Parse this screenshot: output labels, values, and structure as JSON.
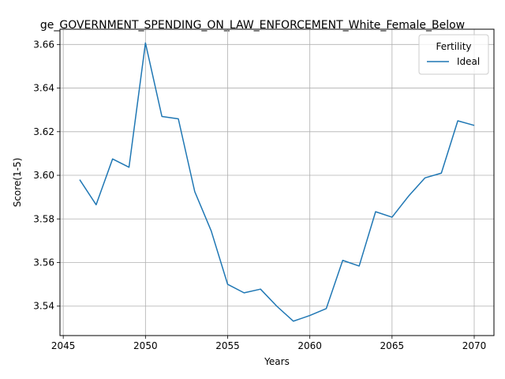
{
  "chart_data": {
    "type": "line",
    "title": "ge_GOVERNMENT_SPENDING_ON_LAW_ENFORCEMENT_White_Female_Below",
    "xlabel": "Years",
    "ylabel": "Score(1-5)",
    "xlim": [
      2044.8,
      2071.2
    ],
    "ylim": [
      3.5265,
      3.667
    ],
    "xticks": [
      2045,
      2050,
      2055,
      2060,
      2065,
      2070
    ],
    "yticks": [
      3.54,
      3.56,
      3.58,
      3.6,
      3.62,
      3.64,
      3.66
    ],
    "ytick_labels": [
      "3.54",
      "3.56",
      "3.58",
      "3.60",
      "3.62",
      "3.64",
      "3.66"
    ],
    "grid": true,
    "legend": {
      "title": "Fertility",
      "placement": "top-right"
    },
    "series": [
      {
        "name": "Ideal",
        "color": "#1f77b4",
        "x": [
          2046,
          2047,
          2048,
          2049,
          2050,
          2051,
          2052,
          2053,
          2054,
          2055,
          2056,
          2057,
          2058,
          2059,
          2060,
          2061,
          2062,
          2063,
          2064,
          2065,
          2066,
          2067,
          2068,
          2069,
          2070
        ],
        "y": [
          3.598,
          3.5865,
          3.6075,
          3.6037,
          3.6607,
          3.627,
          3.6259,
          3.5925,
          3.5745,
          3.55,
          3.5461,
          3.5478,
          3.5399,
          3.5331,
          3.5357,
          3.5389,
          3.561,
          3.5584,
          3.5833,
          3.5808,
          3.5904,
          3.5988,
          3.601,
          3.625,
          3.6229
        ]
      }
    ]
  }
}
